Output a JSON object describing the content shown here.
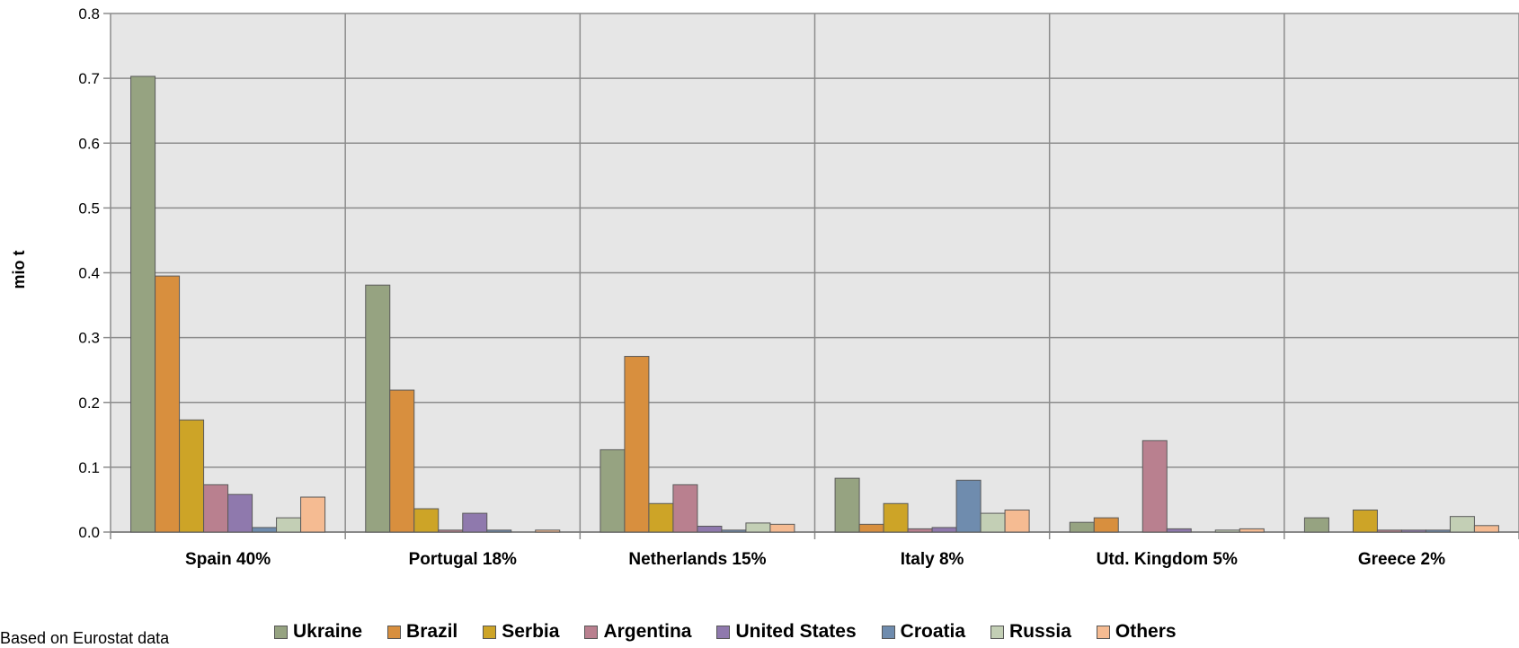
{
  "chart_data": {
    "type": "bar",
    "ylabel": "mio t",
    "ylim": [
      0,
      0.8
    ],
    "yticks": [
      "0.0",
      "0.1",
      "0.2",
      "0.3",
      "0.4",
      "0.5",
      "0.6",
      "0.7",
      "0.8"
    ],
    "grid": true,
    "legend_position": "bottom",
    "categories": [
      "Spain 40%",
      "Portugal 18%",
      "Netherlands 15%",
      "Italy 8%",
      "Utd. Kingdom 5%",
      "Greece 2%"
    ],
    "series": [
      {
        "name": "Ukraine",
        "color": "#96a381",
        "values": [
          0.703,
          0.381,
          0.127,
          0.083,
          0.015,
          0.022
        ]
      },
      {
        "name": "Brazil",
        "color": "#d88f3e",
        "values": [
          0.395,
          0.219,
          0.271,
          0.012,
          0.022,
          0.0
        ]
      },
      {
        "name": "Serbia",
        "color": "#cda427",
        "values": [
          0.173,
          0.036,
          0.044,
          0.044,
          0.0,
          0.034
        ]
      },
      {
        "name": "Argentina",
        "color": "#b9808f",
        "values": [
          0.073,
          0.003,
          0.073,
          0.005,
          0.141,
          0.003
        ]
      },
      {
        "name": "United States",
        "color": "#8f79ad",
        "values": [
          0.058,
          0.029,
          0.009,
          0.007,
          0.005,
          0.003
        ]
      },
      {
        "name": "Croatia",
        "color": "#6f8cae",
        "values": [
          0.007,
          0.003,
          0.003,
          0.08,
          0.0,
          0.003
        ]
      },
      {
        "name": "Russia",
        "color": "#c3cfb5",
        "values": [
          0.022,
          0.0,
          0.014,
          0.029,
          0.003,
          0.024
        ]
      },
      {
        "name": "Others",
        "color": "#f5bb92",
        "values": [
          0.054,
          0.003,
          0.012,
          0.034,
          0.005,
          0.01
        ]
      }
    ]
  },
  "source_note": "Based on Eurostat data"
}
